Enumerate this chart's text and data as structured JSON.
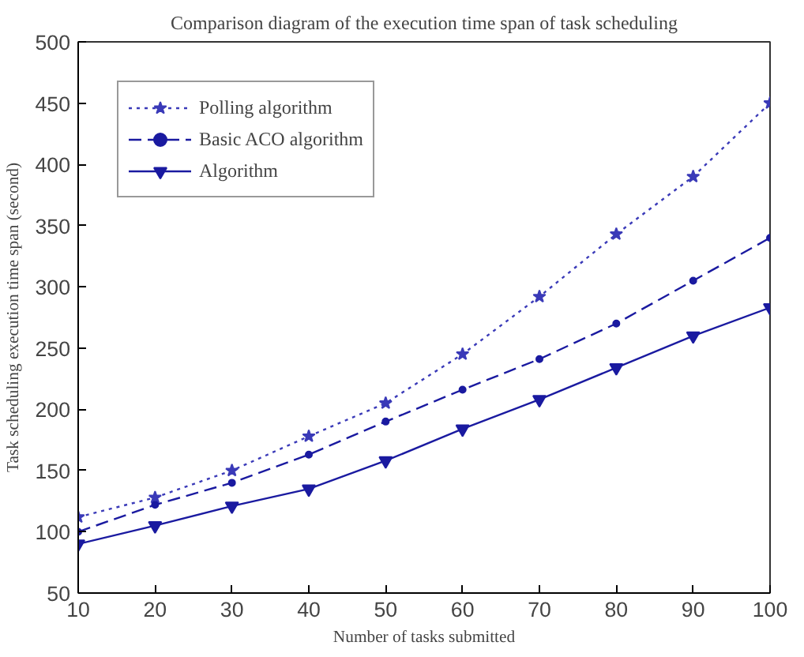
{
  "chart_data": {
    "type": "line",
    "title": "Comparison diagram of the execution time span of task scheduling",
    "xlabel": "Number of tasks submitted",
    "ylabel": "Task scheduling execution time span (second)",
    "x": [
      10,
      20,
      30,
      40,
      50,
      60,
      70,
      80,
      90,
      100
    ],
    "series": [
      {
        "name": "Polling algorithm",
        "color": "#3a3ab8",
        "line_style": "dotted",
        "marker": "star",
        "values": [
          112,
          128,
          150,
          178,
          205,
          245,
          292,
          343,
          390,
          450
        ]
      },
      {
        "name": "Basic ACO algorithm",
        "color": "#1a1aa0",
        "line_style": "dashed",
        "marker": "circle",
        "values": [
          100,
          122,
          140,
          163,
          190,
          216,
          241,
          270,
          305,
          340
        ]
      },
      {
        "name": "Algorithm",
        "color": "#1a1aa0",
        "line_style": "solid",
        "marker": "triangle",
        "values": [
          90,
          105,
          121,
          135,
          158,
          184,
          208,
          234,
          260,
          283
        ]
      }
    ],
    "xlim": [
      10,
      100
    ],
    "ylim": [
      50,
      500
    ],
    "xticks": [
      10,
      20,
      30,
      40,
      50,
      60,
      70,
      80,
      90,
      100
    ],
    "yticks": [
      50,
      100,
      150,
      200,
      250,
      300,
      350,
      400,
      450,
      500
    ],
    "grid": false,
    "legend": "top left"
  }
}
